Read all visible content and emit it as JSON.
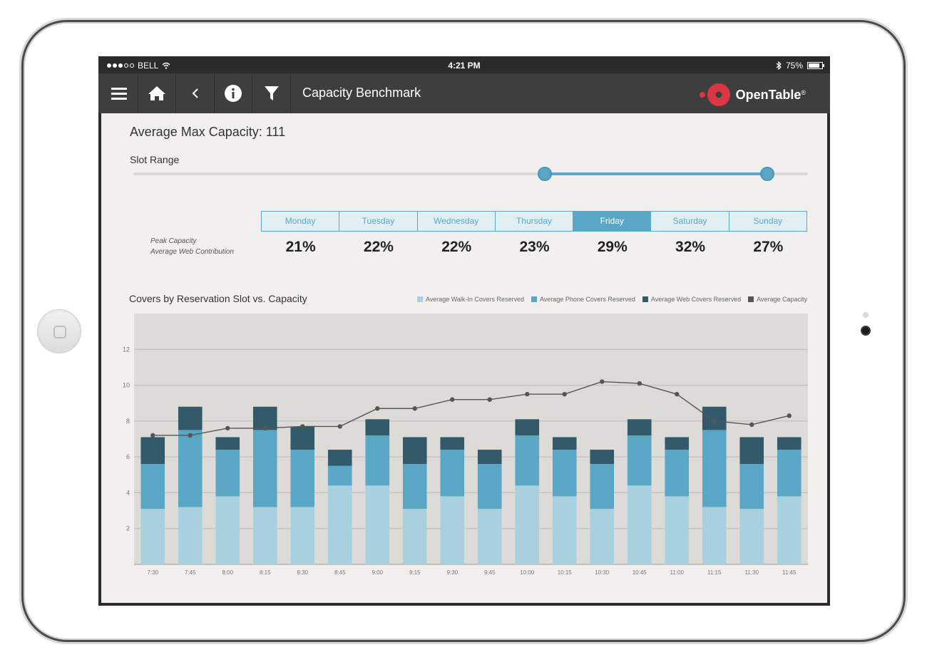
{
  "status_bar": {
    "carrier": "BELL",
    "time": "4:21 PM",
    "battery": "75%"
  },
  "navbar": {
    "title": "Capacity Benchmark",
    "brand": "OpenTable",
    "brand_mark": "®"
  },
  "summary": {
    "avg_max_capacity": "Average Max Capacity: 111",
    "slot_range_label": "Slot Range",
    "slot_range": {
      "start_fraction": 0.61,
      "end_fraction": 0.94
    }
  },
  "days": [
    {
      "label": "Monday",
      "pct": "21%",
      "active": false
    },
    {
      "label": "Tuesday",
      "pct": "22%",
      "active": false
    },
    {
      "label": "Wednesday",
      "pct": "22%",
      "active": false
    },
    {
      "label": "Thursday",
      "pct": "23%",
      "active": false
    },
    {
      "label": "Friday",
      "pct": "29%",
      "active": true
    },
    {
      "label": "Saturday",
      "pct": "32%",
      "active": false
    },
    {
      "label": "Sunday",
      "pct": "27%",
      "active": false
    }
  ],
  "peak_label": {
    "line1": "Peak Capacity",
    "line2": "Average Web Contribution"
  },
  "chart_title": "Covers by Reservation Slot vs. Capacity",
  "colors": {
    "walkin": "#a9d0df",
    "phone": "#5aa7c5",
    "web": "#335a6a",
    "capacity": "#555555",
    "accent": "#5aa7c5",
    "brand_red": "#da3743"
  },
  "chart_data": {
    "type": "bar",
    "stacked": true,
    "categories": [
      "7:30",
      "7:45",
      "8:00",
      "8:15",
      "8:30",
      "8:45",
      "9:00",
      "9:15",
      "9:30",
      "9:45",
      "10:00",
      "10:15",
      "10:30",
      "10:45",
      "11:00",
      "11:15",
      "11:30",
      "11:45"
    ],
    "series": [
      {
        "name": "Average Walk-In Covers Reserved",
        "values": [
          3.1,
          3.2,
          3.8,
          3.2,
          3.2,
          4.4,
          4.4,
          3.1,
          3.8,
          3.1,
          4.4,
          3.8,
          3.1,
          4.4,
          3.8,
          3.2,
          3.1,
          3.8
        ]
      },
      {
        "name": "Average Phone Covers Reserved",
        "values": [
          2.5,
          4.3,
          2.6,
          4.3,
          3.2,
          1.1,
          2.8,
          2.5,
          2.6,
          2.5,
          2.8,
          2.6,
          2.5,
          2.8,
          2.6,
          4.3,
          2.5,
          2.6
        ]
      },
      {
        "name": "Average Web Covers Reserved",
        "values": [
          1.5,
          1.3,
          0.7,
          1.3,
          1.3,
          0.9,
          0.9,
          1.5,
          0.7,
          0.8,
          0.9,
          0.7,
          0.8,
          0.9,
          0.7,
          1.3,
          1.5,
          0.7
        ]
      },
      {
        "name": "Average Capacity",
        "type": "line",
        "values": [
          7.2,
          7.2,
          7.6,
          7.6,
          7.7,
          7.7,
          8.7,
          8.7,
          9.2,
          9.2,
          9.5,
          9.5,
          10.2,
          10.1,
          9.5,
          8.0,
          7.8,
          8.3
        ]
      }
    ],
    "yticks": [
      2,
      4,
      6,
      8,
      10,
      12
    ],
    "ylim": [
      0,
      14
    ],
    "xlabel": "",
    "ylabel": "",
    "grid": true,
    "legend_position": "top-right"
  }
}
